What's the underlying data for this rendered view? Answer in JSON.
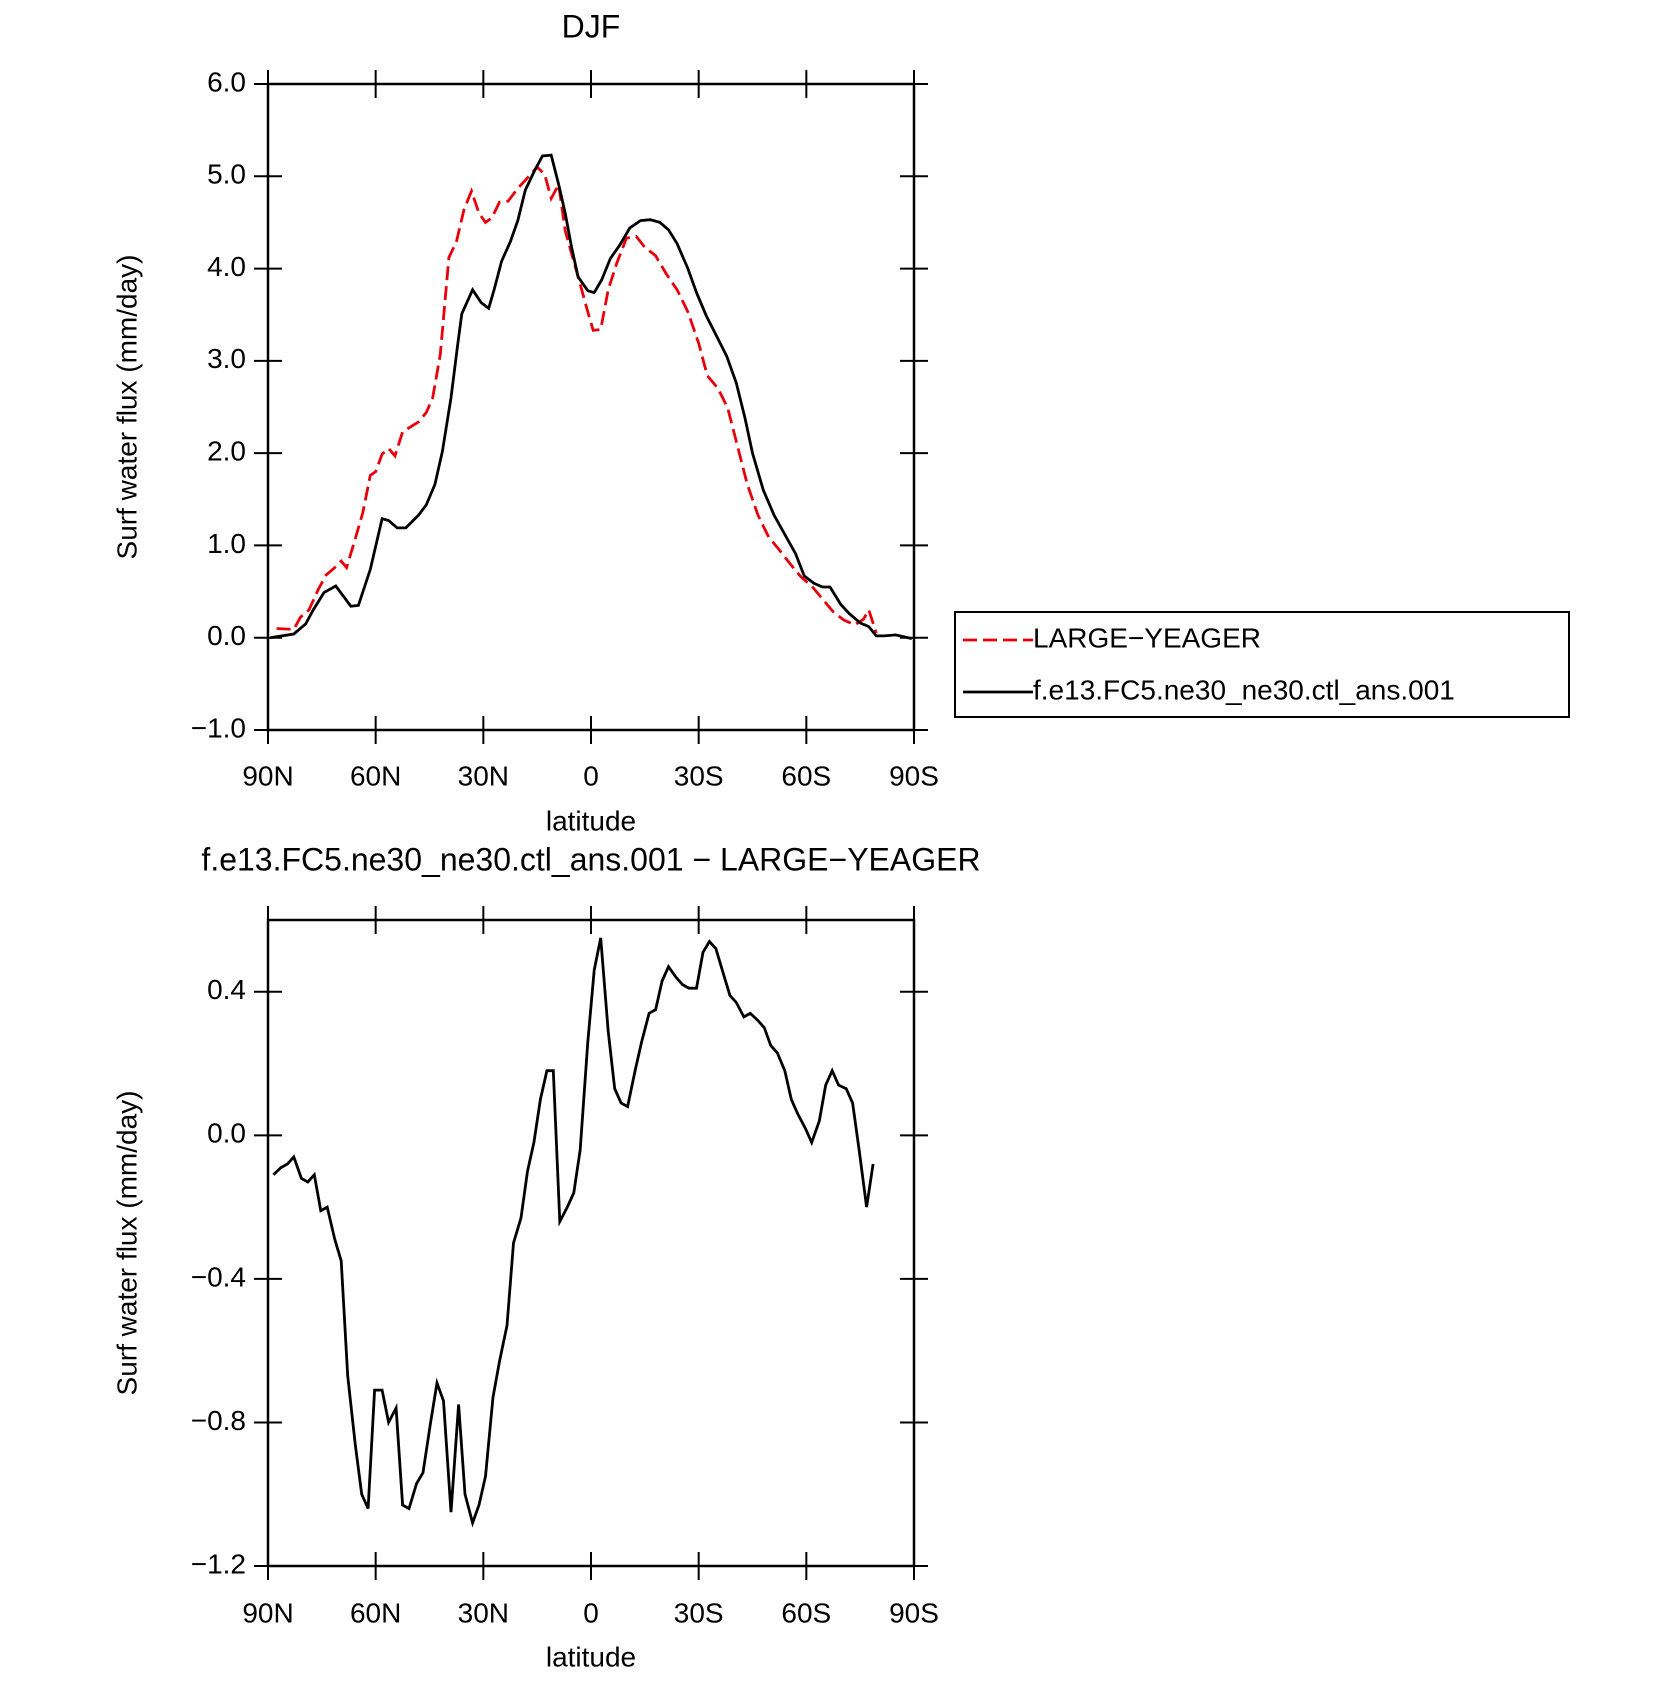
{
  "chart_data": [
    {
      "type": "line",
      "title": "DJF",
      "xlabel": "latitude",
      "ylabel": "Surf water flux (mm/day)",
      "xlim": [
        90,
        -90
      ],
      "xticks": [
        {
          "value": 90,
          "label": "90N"
        },
        {
          "value": 60,
          "label": "60N"
        },
        {
          "value": 30,
          "label": "30N"
        },
        0,
        {
          "value": -30,
          "label": "30S"
        },
        {
          "value": -60,
          "label": "60S"
        },
        {
          "value": -90,
          "label": "90S"
        }
      ],
      "ylim": [
        -1,
        6
      ],
      "yticks": [
        {
          "value": -1,
          "label": "−1.0"
        },
        {
          "value": 0,
          "label": "0.0"
        },
        {
          "value": 1,
          "label": "1.0"
        },
        {
          "value": 2,
          "label": "2.0"
        },
        {
          "value": 3,
          "label": "3.0"
        },
        {
          "value": 4,
          "label": "4.0"
        },
        {
          "value": 5,
          "label": "5.0"
        },
        {
          "value": 6,
          "label": "6.0"
        }
      ],
      "legend": "right",
      "series": [
        {
          "name": "LARGE−YEAGER",
          "color": "#e8000b",
          "dashed": true,
          "x": [
            87.6,
            82.8,
            81,
            78.6,
            75.9,
            73.8,
            71.1,
            69.6,
            68.1,
            66,
            63.6,
            61.5,
            60,
            58.2,
            56.4,
            54.6,
            52.5,
            50.1,
            48,
            45.9,
            44.1,
            42,
            39.6,
            37.5,
            35.4,
            33.3,
            31.2,
            29.4,
            27.6,
            25.5,
            23.1,
            20.4,
            18,
            15,
            12.9,
            11.1,
            9,
            7.2,
            5.1,
            3,
            0.9,
            -0.6,
            -2.7,
            -4.8,
            -7.2,
            -9.9,
            -12.6,
            -15,
            -18,
            -21,
            -24,
            -27,
            -30,
            -32.4,
            -35.4,
            -38.1,
            -40.8,
            -43.5,
            -46.5,
            -49.5,
            -52.5,
            -55.5,
            -58.5,
            -61.5,
            -64.5,
            -67.5,
            -70.5,
            -73.5,
            -75.9,
            -77.4,
            -79.5
          ],
          "values": [
            0.1,
            0.09,
            0.22,
            0.3,
            0.53,
            0.68,
            0.77,
            0.83,
            0.76,
            1.03,
            1.35,
            1.76,
            1.8,
            1.99,
            2.05,
            1.97,
            2.23,
            2.29,
            2.34,
            2.44,
            2.6,
            3.07,
            4.12,
            4.29,
            4.64,
            4.84,
            4.6,
            4.5,
            4.55,
            4.72,
            4.73,
            4.87,
            4.97,
            5.1,
            5.02,
            4.76,
            4.91,
            4.41,
            4.12,
            3.83,
            3.53,
            3.33,
            3.34,
            3.77,
            4.06,
            4.33,
            4.35,
            4.23,
            4.14,
            3.94,
            3.77,
            3.53,
            3.19,
            2.84,
            2.7,
            2.49,
            2.08,
            1.67,
            1.33,
            1.09,
            0.95,
            0.8,
            0.66,
            0.56,
            0.42,
            0.28,
            0.19,
            0.14,
            0.2,
            0.3,
            0.05
          ]
        },
        {
          "name": "f.e13.FC5.ne30_ne30.ctl_ans.001",
          "color": "#000000",
          "dashed": false,
          "x": [
            89.4,
            82.8,
            79.5,
            77.4,
            74.4,
            71.1,
            66.9,
            64.8,
            61.5,
            58.2,
            56.4,
            54,
            51.6,
            48,
            45.9,
            43.5,
            41.4,
            39,
            37.2,
            36,
            33,
            30.6,
            28.5,
            27,
            24.9,
            22.5,
            20.4,
            18.3,
            15.6,
            13.5,
            11.1,
            9,
            7.2,
            5.4,
            3.6,
            0.9,
            -0.9,
            -3,
            -5.4,
            -8.1,
            -10.8,
            -13.8,
            -16.5,
            -19.2,
            -21.6,
            -24,
            -27,
            -29.4,
            -32.1,
            -35.1,
            -37.8,
            -40.5,
            -42.9,
            -45,
            -48,
            -51,
            -54,
            -57,
            -59.4,
            -62.1,
            -64.5,
            -66.6,
            -69.6,
            -72,
            -75,
            -77.4,
            -79.5,
            -81.6,
            -84.9,
            -89.4
          ],
          "values": [
            0,
            0.04,
            0.15,
            0.3,
            0.49,
            0.56,
            0.34,
            0.35,
            0.74,
            1.29,
            1.27,
            1.19,
            1.19,
            1.33,
            1.44,
            1.66,
            2.02,
            2.6,
            3.16,
            3.51,
            3.77,
            3.63,
            3.57,
            3.77,
            4.08,
            4.29,
            4.52,
            4.85,
            5.07,
            5.22,
            5.23,
            4.91,
            4.6,
            4.23,
            3.91,
            3.76,
            3.74,
            3.88,
            4.11,
            4.26,
            4.44,
            4.52,
            4.53,
            4.5,
            4.42,
            4.27,
            4,
            3.74,
            3.49,
            3.26,
            3.05,
            2.76,
            2.38,
            2,
            1.6,
            1.33,
            1.12,
            0.91,
            0.67,
            0.59,
            0.55,
            0.55,
            0.36,
            0.26,
            0.16,
            0.12,
            0.02,
            0.02,
            0.03,
            -0.01
          ]
        }
      ]
    },
    {
      "type": "line",
      "title": "f.e13.FC5.ne30_ne30.ctl_ans.001 − LARGE−YEAGER",
      "xlabel": "latitude",
      "ylabel": "Surf water flux (mm/day)",
      "xlim": [
        90,
        -90
      ],
      "xticks": [
        {
          "value": 90,
          "label": "90N"
        },
        {
          "value": 60,
          "label": "60N"
        },
        {
          "value": 30,
          "label": "30N"
        },
        0,
        {
          "value": -30,
          "label": "30S"
        },
        {
          "value": -60,
          "label": "60S"
        },
        {
          "value": -90,
          "label": "90S"
        }
      ],
      "ylim": [
        -1.2,
        0.6
      ],
      "yticks": [
        {
          "value": -1.2,
          "label": "−1.2"
        },
        {
          "value": -0.8,
          "label": "−0.8"
        },
        {
          "value": -0.4,
          "label": "−0.4"
        },
        {
          "value": 0,
          "label": "0.0"
        },
        0.4
      ],
      "series": [
        {
          "color": "#000000",
          "dashed": false,
          "x": [
            88.5,
            86.4,
            84.6,
            82.8,
            80.7,
            78.9,
            77.1,
            75.3,
            73.5,
            71.4,
            69.6,
            67.8,
            65.7,
            63.9,
            62.1,
            60.3,
            58.2,
            56.4,
            54.3,
            52.5,
            50.7,
            48.6,
            46.8,
            44.7,
            42.9,
            41.1,
            39,
            36.9,
            35.1,
            33,
            31.2,
            29.4,
            27.3,
            25.5,
            23.4,
            21.6,
            19.5,
            17.7,
            15.9,
            14.1,
            12.3,
            10.5,
            8.7,
            6.6,
            4.8,
            3,
            0.9,
            -0.9,
            -2.7,
            -4.8,
            -6.6,
            -8.4,
            -10.2,
            -12.3,
            -14.1,
            -16.2,
            -18,
            -19.8,
            -21.6,
            -23.7,
            -25.5,
            -27.3,
            -29.4,
            -31.2,
            -33,
            -34.8,
            -36.9,
            -38.7,
            -40.5,
            -42.6,
            -44.4,
            -46.5,
            -48.3,
            -50.1,
            -51.9,
            -54,
            -55.8,
            -57.6,
            -59.7,
            -61.5,
            -63.6,
            -65.4,
            -67.2,
            -69,
            -71.1,
            -72.9,
            -74.7,
            -76.8,
            -78.6
          ],
          "values": [
            -0.11,
            -0.09,
            -0.08,
            -0.06,
            -0.12,
            -0.13,
            -0.11,
            -0.21,
            -0.2,
            -0.29,
            -0.35,
            -0.67,
            -0.86,
            -1,
            -1.04,
            -0.71,
            -0.71,
            -0.8,
            -0.76,
            -1.03,
            -1.04,
            -0.97,
            -0.94,
            -0.8,
            -0.69,
            -0.74,
            -1.05,
            -0.75,
            -1,
            -1.08,
            -1.03,
            -0.95,
            -0.73,
            -0.63,
            -0.53,
            -0.3,
            -0.23,
            -0.1,
            -0.02,
            0.1,
            0.18,
            0.18,
            -0.24,
            -0.2,
            -0.16,
            -0.04,
            0.26,
            0.46,
            0.55,
            0.29,
            0.13,
            0.09,
            0.08,
            0.18,
            0.26,
            0.34,
            0.35,
            0.43,
            0.47,
            0.44,
            0.42,
            0.41,
            0.41,
            0.51,
            0.54,
            0.52,
            0.45,
            0.39,
            0.37,
            0.33,
            0.34,
            0.32,
            0.3,
            0.25,
            0.23,
            0.18,
            0.1,
            0.06,
            0.02,
            -0.02,
            0.04,
            0.14,
            0.18,
            0.14,
            0.13,
            0.09,
            -0.04,
            -0.2,
            -0.08
          ]
        }
      ]
    }
  ]
}
